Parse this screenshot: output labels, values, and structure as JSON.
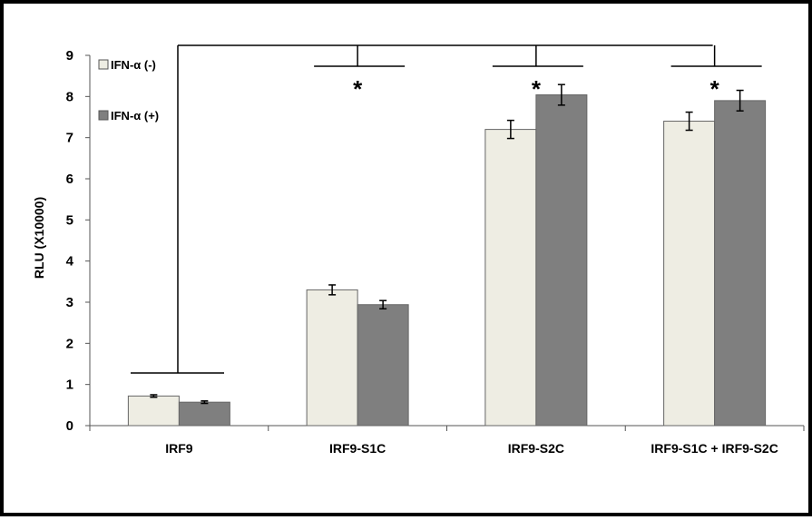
{
  "chart_data": {
    "type": "bar",
    "ylabel": "RLU (X10000)",
    "ylim": [
      0,
      9
    ],
    "yticks": [
      0,
      1,
      2,
      3,
      4,
      5,
      6,
      7,
      8,
      9
    ],
    "categories": [
      "IRF9",
      "IRF9-S1C",
      "IRF9-S2C",
      "IRF9-S1C + IRF9-S2C"
    ],
    "series": [
      {
        "name": "IFN-α (-)",
        "color": "#eeede3",
        "values": [
          0.72,
          3.3,
          7.2,
          7.4
        ],
        "errors": [
          0.03,
          0.12,
          0.22,
          0.22
        ]
      },
      {
        "name": "IFN-α (+)",
        "color": "#7f7f7f",
        "values": [
          0.57,
          2.94,
          8.04,
          7.9
        ],
        "errors": [
          0.03,
          0.1,
          0.25,
          0.25
        ]
      }
    ],
    "significance": [
      "*",
      "*",
      "*"
    ],
    "legend": "top-left",
    "grid": false
  }
}
